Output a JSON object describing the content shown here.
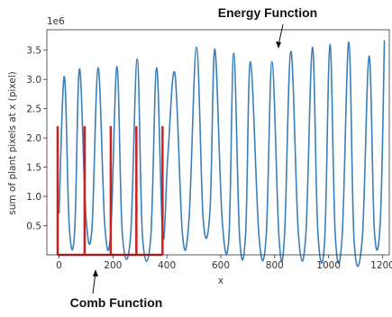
{
  "chart_data": {
    "type": "line",
    "title": "",
    "xlabel": "x",
    "ylabel": "sum of plant pixels at x (pixel)",
    "y_offset_text": "1e6",
    "xlim": [
      -45,
      1225
    ],
    "ylim": [
      0.0,
      3.85
    ],
    "xticks": [
      0,
      200,
      400,
      600,
      800,
      1000,
      1200
    ],
    "yticks": [
      0.5,
      1.0,
      1.5,
      2.0,
      2.5,
      3.0,
      3.5
    ],
    "xtick_labels": [
      "0",
      "200",
      "400",
      "600",
      "800",
      "1000",
      "1200"
    ],
    "ytick_labels": [
      "0.5",
      "1.0",
      "1.5",
      "2.0",
      "2.5",
      "3.0",
      "3.5"
    ],
    "grid": false,
    "legend": "none",
    "series": [
      {
        "color": "#3a7fb8",
        "x": [
          0,
          20,
          38,
          58,
          76,
          100,
          122,
          145,
          170,
          192,
          215,
          235,
          265,
          290,
          310,
          340,
          362,
          385,
          404,
          430,
          458,
          482,
          510,
          535,
          560,
          578,
          605,
          630,
          648,
          670,
          692,
          710,
          742,
          768,
          790,
          816,
          836,
          860,
          888,
          915,
          940,
          960,
          985,
          1005,
          1025,
          1050,
          1075,
          1095,
          1125,
          1150,
          1170,
          1192,
          1207
        ],
        "y": [
          0.7,
          3.05,
          0.5,
          0.4,
          3.18,
          0.65,
          0.45,
          3.2,
          0.5,
          0.4,
          3.22,
          0.35,
          0.3,
          3.35,
          0.3,
          0.28,
          3.2,
          0.3,
          1.7,
          3.1,
          0.35,
          0.6,
          3.55,
          0.6,
          0.75,
          3.52,
          0.6,
          0.3,
          3.45,
          0.3,
          0.35,
          3.3,
          0.3,
          0.3,
          3.3,
          0.3,
          0.3,
          3.48,
          0.35,
          0.3,
          3.55,
          0.4,
          0.22,
          3.6,
          0.3,
          0.3,
          3.64,
          0.2,
          0.3,
          3.4,
          0.4,
          0.6,
          3.67
        ]
      },
      {
        "color": "#cc1f1f",
        "shape": "comb",
        "x": [
          -5,
          95,
          192,
          287,
          384
        ],
        "tooth_top": 2.2,
        "base": 0.0
      }
    ],
    "annotations": [
      {
        "text": "Energy Function"
      },
      {
        "text": "Comb Function"
      }
    ]
  }
}
